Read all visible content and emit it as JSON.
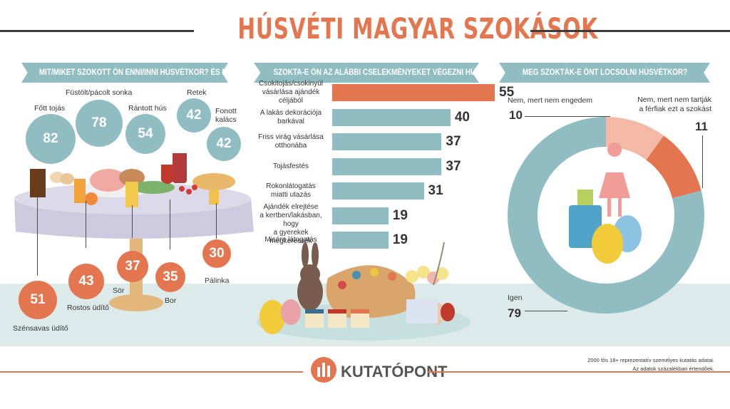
{
  "title": "HÚSVÉTI MAGYAR SZOKÁSOK",
  "sections": {
    "food_header": "MIT/MIKET SZOKOTT ÖN ENNI/INNI HÚSVÉTKOR? ÉS MÉG MIT?",
    "activities_header": "SZOKTA-E ÖN AZ ALÁBBI CSELEKMÉNYEKET VÉGEZNI HÚSVÉTKOR?",
    "sprinkle_header": "MEG SZOKTÁK-E ÖNT LOCSOLNI HÚSVÉTKOR?"
  },
  "colors": {
    "accent": "#e4764f",
    "teal": "#8fbdc1",
    "dark": "#3c3c3c",
    "floor": "#dcebea"
  },
  "chart_data": [
    {
      "type": "bubble",
      "title": "MIT/MIKET SZOKOTT ÖN ENNI/INNI HÚSVÉTKOR? ÉS MÉG MIT?",
      "foods": [
        {
          "label": "Főtt tojás",
          "value": 82
        },
        {
          "label": "Füstölt/pácolt sonka",
          "value": 78
        },
        {
          "label": "Rántott hús",
          "value": 54
        },
        {
          "label": "Retek",
          "value": 42
        },
        {
          "label": "Fonott\nkalács",
          "value": 42
        }
      ],
      "drinks": [
        {
          "label": "Szénsavas üdítő",
          "value": 51
        },
        {
          "label": "Rostos üdítő",
          "value": 43
        },
        {
          "label": "Sör",
          "value": 37
        },
        {
          "label": "Bor",
          "value": 35
        },
        {
          "label": "Pálinka",
          "value": 30
        }
      ]
    },
    {
      "type": "bar",
      "title": "SZOKTA-E ÖN AZ ALÁBBI CSELEKMÉNYEKET VÉGEZNI HÚSVÉTKOR?",
      "orientation": "horizontal",
      "categories": [
        "Csokitojás/csokinyúl\nvásárlása ajándék\ncéljából",
        "A lakás dekorációja\nbarkával",
        "Friss virág vásárlása\notthonába",
        "Tojásfestés",
        "Rokonlátogatás\nmiatti utazás",
        "Ajándék elrejtése\na kertben/lakásban, hogy\na gyerekek megkeressék",
        "Misére látogatás"
      ],
      "values": [
        55,
        40,
        37,
        37,
        31,
        19,
        19
      ],
      "highlight_index": 0
    },
    {
      "type": "pie",
      "title": "MEG SZOKTÁK-E ÖNT LOCSOLNI HÚSVÉTKOR?",
      "donut": true,
      "slices": [
        {
          "label": "Nem, mert nem engedem",
          "value": 10,
          "color": "#f4b9a6"
        },
        {
          "label": "Nem, mert nem tartják\na férfiak ezt a szokást",
          "value": 11,
          "color": "#e4764f"
        },
        {
          "label": "Igen",
          "value": 79,
          "color": "#8fbdc1"
        }
      ]
    }
  ],
  "footer": {
    "logo": "KUTATÓPONT",
    "note1": "2000 fős 18+ reprezentatív személyes kutatás adatai.",
    "note2": "Az adatok százalékban értendőek."
  }
}
